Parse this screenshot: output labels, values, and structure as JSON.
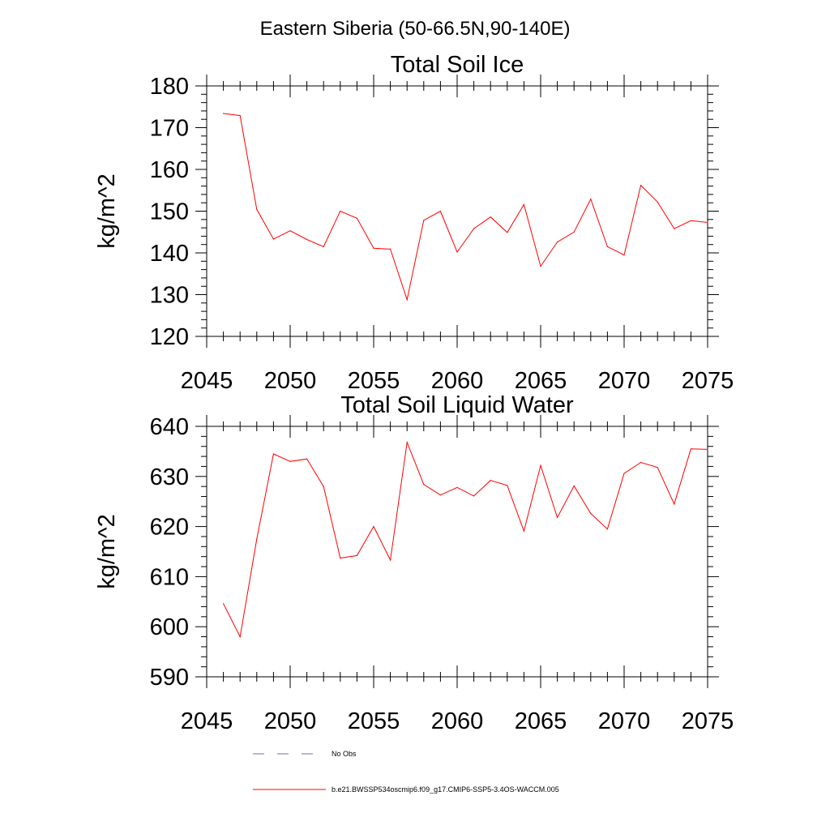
{
  "figure": {
    "title": "Eastern Siberia (50-66.5N,90-140E)"
  },
  "legend": {
    "entries": [
      {
        "label": "No Obs",
        "color": "#6f6fb0",
        "dashed": true
      },
      {
        "label": "b.e21.BWSSP534oscmip6.f09_g17.CMIP6-SSP5-3.4OS-WACCM.005",
        "color": "#ff0000",
        "dashed": false
      }
    ]
  },
  "colors": {
    "series": "#ff0000",
    "axes": "#000000",
    "background": "#ffffff"
  },
  "chart_data": [
    {
      "type": "line",
      "title": "Total Soil Ice",
      "xlabel": "",
      "ylabel": "kg/m^2",
      "xlim": [
        2045,
        2075
      ],
      "ylim": [
        120,
        180
      ],
      "x_ticks": [
        2045,
        2050,
        2055,
        2060,
        2065,
        2070,
        2075
      ],
      "y_ticks": [
        120,
        130,
        140,
        150,
        160,
        170,
        180
      ],
      "grid": false,
      "series": [
        {
          "x": [
            2046,
            2047,
            2048,
            2049,
            2050,
            2051,
            2052,
            2053,
            2054,
            2055,
            2056,
            2057,
            2058,
            2059,
            2060,
            2061,
            2062,
            2063,
            2064,
            2065,
            2066,
            2067,
            2068,
            2069,
            2070,
            2071,
            2072,
            2073,
            2074,
            2075
          ],
          "y": [
            173.4,
            172.9,
            150.4,
            143.3,
            145.3,
            143.2,
            141.5,
            150.0,
            148.3,
            141.1,
            140.9,
            128.8,
            147.8,
            150.0,
            140.2,
            145.8,
            148.6,
            144.9,
            151.6,
            136.8,
            142.6,
            145.0,
            152.9,
            141.5,
            139.5,
            156.2,
            152.2,
            145.8,
            147.7,
            147.3
          ]
        }
      ]
    },
    {
      "type": "line",
      "title": "Total Soil Liquid Water",
      "xlabel": "",
      "ylabel": "kg/m^2",
      "xlim": [
        2045,
        2075
      ],
      "ylim": [
        590,
        640
      ],
      "x_ticks": [
        2045,
        2050,
        2055,
        2060,
        2065,
        2070,
        2075
      ],
      "y_ticks": [
        590,
        600,
        610,
        620,
        630,
        640
      ],
      "grid": false,
      "series": [
        {
          "x": [
            2046,
            2047,
            2048,
            2049,
            2050,
            2051,
            2052,
            2053,
            2054,
            2055,
            2056,
            2057,
            2058,
            2059,
            2060,
            2061,
            2062,
            2063,
            2064,
            2065,
            2066,
            2067,
            2068,
            2069,
            2070,
            2071,
            2072,
            2073,
            2074,
            2075
          ],
          "y": [
            604.6,
            598.0,
            617.5,
            634.5,
            633.0,
            633.5,
            628.0,
            613.7,
            614.2,
            620.0,
            613.3,
            636.8,
            628.4,
            626.3,
            627.8,
            626.1,
            629.2,
            628.2,
            619.1,
            632.2,
            621.8,
            628.1,
            622.6,
            619.5,
            630.6,
            632.8,
            631.8,
            624.5,
            635.5,
            635.4
          ]
        }
      ]
    }
  ]
}
